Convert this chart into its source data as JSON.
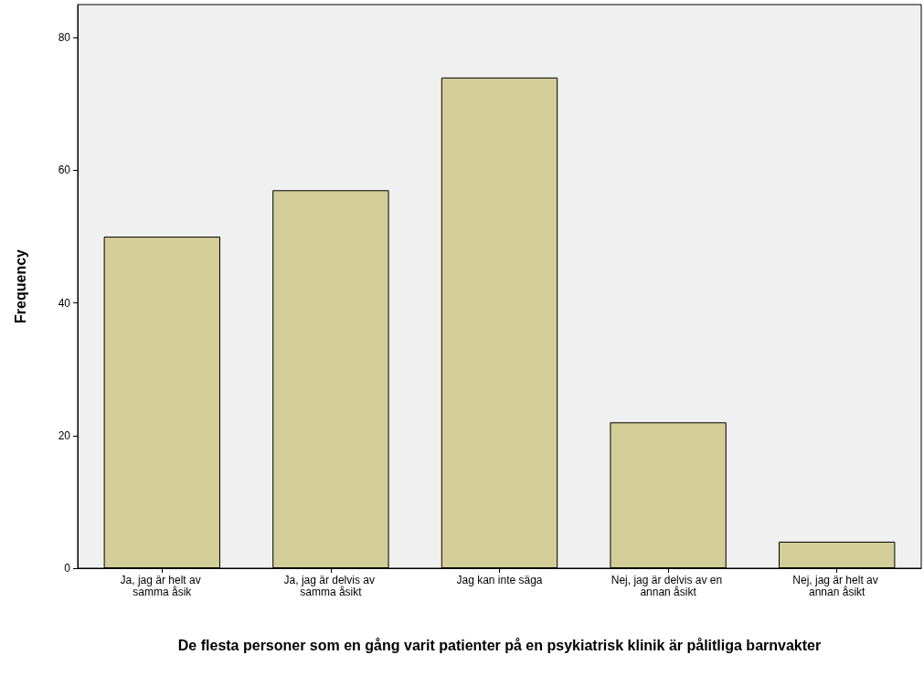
{
  "chart_data": {
    "type": "bar",
    "xlabel": "De flesta personer som en gång varit patienter på en psykiatrisk klinik är pålitliga barnvakter",
    "ylabel": "Frequency",
    "categories": [
      "Ja, jag är helt av samma åsik",
      "Ja, jag är delvis av samma åsikt",
      "Jag kan inte säga",
      "Nej, jag är delvis av en annan åsikt",
      "Nej, jag är helt av annan åsikt"
    ],
    "values": [
      50,
      57,
      74,
      22,
      4
    ],
    "color": "#d3ce97",
    "ylim": [
      0,
      85
    ],
    "yticks": [
      0,
      20,
      40,
      60,
      80
    ],
    "grid": false
  }
}
